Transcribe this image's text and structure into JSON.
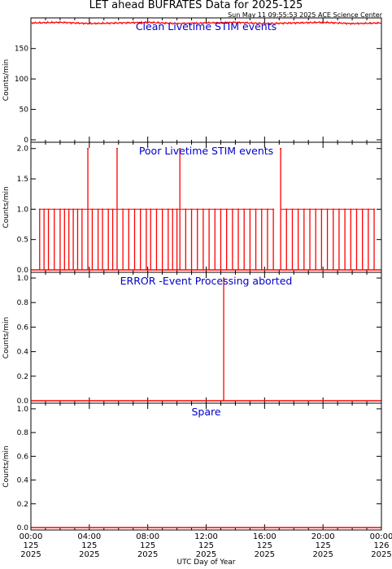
{
  "header": {
    "title": "LET ahead BUFRATES Data for 2025-125",
    "timestamp": "Sun May 11 09:55:53 2025 ACE Science Center"
  },
  "colors": {
    "data": "#ff0000",
    "panel_title": "#0000c8",
    "axes": "#000000"
  },
  "chart_data": [
    {
      "type": "line",
      "title": "Clean Livetime STIM events",
      "ylabel": "Counts/min",
      "ylim": [
        0,
        195
      ],
      "yticks": [
        0,
        50,
        100,
        150
      ],
      "x_hours": [
        0,
        24
      ],
      "series": [
        {
          "values": [
            {
              "x": 0,
              "y": 192
            },
            {
              "x": 2,
              "y": 193
            },
            {
              "x": 4,
              "y": 191
            },
            {
              "x": 6,
              "y": 192
            },
            {
              "x": 8,
              "y": 193
            },
            {
              "x": 10,
              "y": 191
            },
            {
              "x": 12,
              "y": 192
            },
            {
              "x": 14,
              "y": 193
            },
            {
              "x": 16,
              "y": 191
            },
            {
              "x": 18,
              "y": 192
            },
            {
              "x": 20,
              "y": 193
            },
            {
              "x": 22,
              "y": 191
            },
            {
              "x": 24,
              "y": 192
            }
          ]
        }
      ]
    },
    {
      "type": "line",
      "title": "Poor Livetime STIM events",
      "ylabel": "Counts/min",
      "ylim": [
        0,
        2.05
      ],
      "yticks": [
        0.0,
        0.5,
        1.0,
        1.5,
        2.0
      ],
      "x_hours": [
        0,
        24
      ],
      "series": [
        {
          "values": [
            {
              "x": 0.6,
              "y": 1
            },
            {
              "x": 0.9,
              "y": 1
            },
            {
              "x": 1.2,
              "y": 1
            },
            {
              "x": 1.6,
              "y": 1
            },
            {
              "x": 2.0,
              "y": 1
            },
            {
              "x": 2.3,
              "y": 1
            },
            {
              "x": 2.6,
              "y": 1
            },
            {
              "x": 2.9,
              "y": 1
            },
            {
              "x": 3.2,
              "y": 1
            },
            {
              "x": 3.5,
              "y": 1
            },
            {
              "x": 3.9,
              "y": 2
            },
            {
              "x": 4.2,
              "y": 1
            },
            {
              "x": 4.6,
              "y": 1
            },
            {
              "x": 4.9,
              "y": 1
            },
            {
              "x": 5.3,
              "y": 1
            },
            {
              "x": 5.6,
              "y": 1
            },
            {
              "x": 5.9,
              "y": 2
            },
            {
              "x": 6.3,
              "y": 1
            },
            {
              "x": 6.7,
              "y": 1
            },
            {
              "x": 7.1,
              "y": 1
            },
            {
              "x": 7.5,
              "y": 1
            },
            {
              "x": 7.9,
              "y": 1
            },
            {
              "x": 8.2,
              "y": 1
            },
            {
              "x": 8.6,
              "y": 1
            },
            {
              "x": 9.0,
              "y": 1
            },
            {
              "x": 9.4,
              "y": 1
            },
            {
              "x": 9.7,
              "y": 1
            },
            {
              "x": 10.0,
              "y": 1
            },
            {
              "x": 10.2,
              "y": 2
            },
            {
              "x": 10.6,
              "y": 1
            },
            {
              "x": 11.0,
              "y": 1
            },
            {
              "x": 11.4,
              "y": 1
            },
            {
              "x": 11.8,
              "y": 1
            },
            {
              "x": 12.2,
              "y": 1
            },
            {
              "x": 12.6,
              "y": 1
            },
            {
              "x": 13.0,
              "y": 1
            },
            {
              "x": 13.4,
              "y": 1
            },
            {
              "x": 13.8,
              "y": 1
            },
            {
              "x": 14.2,
              "y": 1
            },
            {
              "x": 14.6,
              "y": 1
            },
            {
              "x": 15.0,
              "y": 1
            },
            {
              "x": 15.4,
              "y": 1
            },
            {
              "x": 15.8,
              "y": 1
            },
            {
              "x": 16.2,
              "y": 1
            },
            {
              "x": 16.6,
              "y": 1
            },
            {
              "x": 17.1,
              "y": 2
            },
            {
              "x": 17.5,
              "y": 1
            },
            {
              "x": 17.9,
              "y": 1
            },
            {
              "x": 18.3,
              "y": 1
            },
            {
              "x": 18.7,
              "y": 1
            },
            {
              "x": 19.1,
              "y": 1
            },
            {
              "x": 19.5,
              "y": 1
            },
            {
              "x": 19.9,
              "y": 1
            },
            {
              "x": 20.3,
              "y": 1
            },
            {
              "x": 20.7,
              "y": 1
            },
            {
              "x": 21.1,
              "y": 1
            },
            {
              "x": 21.5,
              "y": 1
            },
            {
              "x": 21.9,
              "y": 1
            },
            {
              "x": 22.3,
              "y": 1
            },
            {
              "x": 22.7,
              "y": 1
            },
            {
              "x": 23.1,
              "y": 1
            },
            {
              "x": 23.5,
              "y": 1
            }
          ]
        }
      ]
    },
    {
      "type": "line",
      "title": "ERROR -Event Processing aborted",
      "ylabel": "Counts/min",
      "ylim": [
        0,
        1.02
      ],
      "yticks": [
        0.0,
        0.2,
        0.4,
        0.6,
        0.8,
        1.0
      ],
      "x_hours": [
        0,
        24
      ],
      "series": [
        {
          "values": [
            {
              "x": 13.2,
              "y": 1
            }
          ]
        }
      ]
    },
    {
      "type": "line",
      "title": "Spare",
      "ylabel": "Counts/min",
      "ylim": [
        0,
        1.02
      ],
      "yticks": [
        0.0,
        0.2,
        0.4,
        0.6,
        0.8,
        1.0
      ],
      "x_hours": [
        0,
        24
      ],
      "series": [
        {
          "values": []
        }
      ]
    }
  ],
  "x_axis": {
    "xlabel": "UTC Day of Year",
    "ticks": [
      {
        "hour": 0,
        "time": "00:00",
        "doy": "125",
        "year": "2025"
      },
      {
        "hour": 4,
        "time": "04:00",
        "doy": "125",
        "year": "2025"
      },
      {
        "hour": 8,
        "time": "08:00",
        "doy": "125",
        "year": "2025"
      },
      {
        "hour": 12,
        "time": "12:00",
        "doy": "125",
        "year": "2025"
      },
      {
        "hour": 16,
        "time": "16:00",
        "doy": "125",
        "year": "2025"
      },
      {
        "hour": 20,
        "time": "20:00",
        "doy": "125",
        "year": "2025"
      },
      {
        "hour": 24,
        "time": "00:00",
        "doy": "126",
        "year": "2025"
      }
    ]
  }
}
